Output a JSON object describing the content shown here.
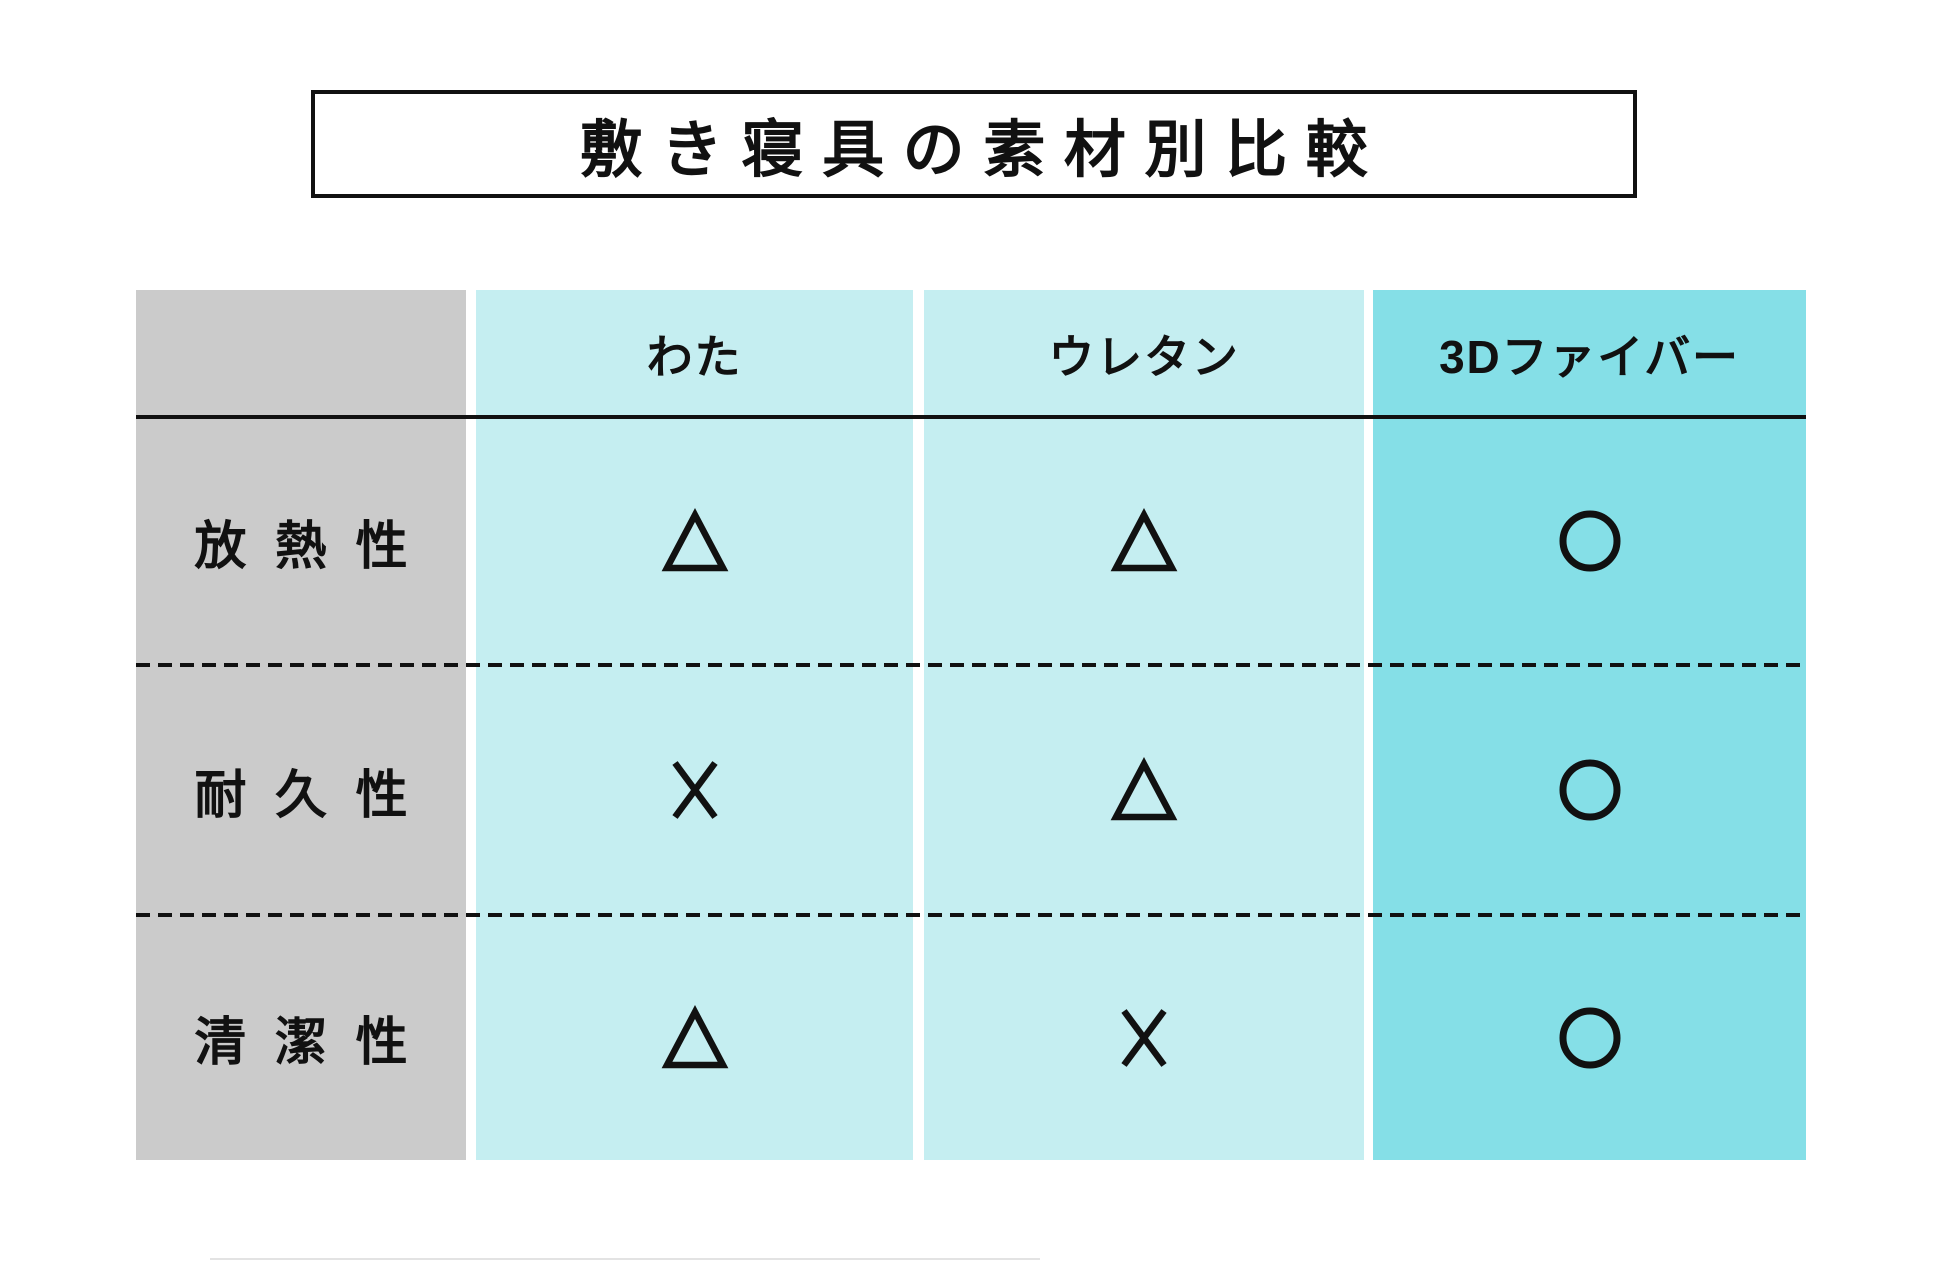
{
  "title": "敷き寝具の素材別比較",
  "chart_data": {
    "type": "table",
    "title": "敷き寝具の素材別比較",
    "columns": [
      "",
      "わた",
      "ウレタン",
      "3Dファイバー"
    ],
    "row_labels": [
      "放熱性",
      "耐久性",
      "清潔性"
    ],
    "rows": [
      {
        "label": "放熱性",
        "values": [
          "triangle",
          "triangle",
          "circle"
        ]
      },
      {
        "label": "耐久性",
        "values": [
          "cross",
          "triangle",
          "circle"
        ]
      },
      {
        "label": "清潔性",
        "values": [
          "triangle",
          "cross",
          "circle"
        ]
      }
    ],
    "symbol_glyphs": {
      "triangle": "△",
      "cross": "×",
      "circle": "○"
    },
    "legend_position": "none",
    "highlighted_column": "3Dファイバー"
  },
  "colors": {
    "row_label_band": "#cbcbcb",
    "normal_column_band": "#c5eef1",
    "highlight_column_band": "#85dfe7",
    "line": "#111111",
    "background": "#ffffff"
  }
}
